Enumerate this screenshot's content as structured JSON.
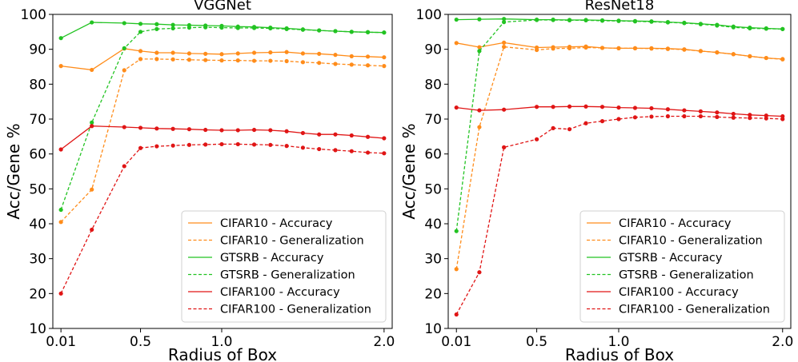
{
  "chart_data": [
    {
      "type": "line",
      "title": "VGGNet",
      "xlabel": "Radius of Box",
      "ylabel": "Acc/Gene %",
      "xlim": [
        -0.04,
        2.05
      ],
      "ylim": [
        10,
        100
      ],
      "xticks": [
        0.01,
        0.5,
        1.0,
        2.0
      ],
      "xtick_labels": [
        "0.01",
        "0.5",
        "1.0",
        "2.0"
      ],
      "yticks": [
        10,
        20,
        30,
        40,
        50,
        60,
        70,
        80,
        90,
        100
      ],
      "legend_position": "lower-right",
      "x": [
        0.01,
        0.2,
        0.4,
        0.5,
        0.6,
        0.7,
        0.8,
        0.9,
        1.0,
        1.1,
        1.2,
        1.3,
        1.4,
        1.5,
        1.6,
        1.7,
        1.8,
        1.9,
        2.0
      ],
      "series": [
        {
          "name": "CIFAR10 - Accuracy",
          "color": "#ff8c1a",
          "dashed": false,
          "values": [
            85.2,
            84.1,
            90.2,
            89.5,
            89.0,
            89.0,
            88.8,
            88.7,
            88.6,
            88.8,
            89.0,
            89.1,
            89.2,
            88.8,
            88.7,
            88.4,
            88.0,
            87.9,
            87.7
          ]
        },
        {
          "name": "CIFAR10 - Generalization",
          "color": "#ff8c1a",
          "dashed": true,
          "values": [
            40.5,
            49.8,
            84.0,
            87.2,
            87.2,
            87.1,
            87.0,
            86.9,
            86.8,
            86.8,
            86.7,
            86.7,
            86.6,
            86.3,
            86.1,
            85.8,
            85.6,
            85.4,
            85.2
          ]
        },
        {
          "name": "GTSRB - Accuracy",
          "color": "#22c322",
          "dashed": false,
          "values": [
            93.2,
            97.7,
            97.5,
            97.3,
            97.2,
            97.0,
            96.9,
            96.8,
            96.7,
            96.5,
            96.4,
            96.2,
            96.0,
            95.7,
            95.4,
            95.2,
            95.0,
            94.9,
            94.8
          ]
        },
        {
          "name": "GTSRB - Generalization",
          "color": "#22c322",
          "dashed": true,
          "values": [
            44.0,
            69.0,
            90.3,
            95.0,
            95.8,
            96.0,
            96.2,
            96.3,
            96.2,
            96.1,
            96.1,
            96.0,
            95.8,
            95.6,
            95.4,
            95.2,
            95.0,
            94.9,
            94.8
          ]
        },
        {
          "name": "CIFAR100 - Accuracy",
          "color": "#e01515",
          "dashed": false,
          "values": [
            61.3,
            68.0,
            67.7,
            67.5,
            67.3,
            67.2,
            67.1,
            66.9,
            66.8,
            66.8,
            66.9,
            66.8,
            66.5,
            66.0,
            65.6,
            65.6,
            65.3,
            64.9,
            64.5
          ]
        },
        {
          "name": "CIFAR100 - Generalization",
          "color": "#e01515",
          "dashed": true,
          "values": [
            20.0,
            38.3,
            56.5,
            61.7,
            62.2,
            62.4,
            62.6,
            62.7,
            62.8,
            62.8,
            62.7,
            62.6,
            62.3,
            61.8,
            61.4,
            61.1,
            60.8,
            60.4,
            60.2
          ]
        }
      ]
    },
    {
      "type": "line",
      "title": "ResNet18",
      "xlabel": "Radius of Box",
      "ylabel": "Acc/Gene %",
      "xlim": [
        -0.04,
        2.05
      ],
      "ylim": [
        10,
        100
      ],
      "xticks": [
        0.01,
        0.5,
        1.0,
        2.0
      ],
      "xtick_labels": [
        "0.01",
        "0.5",
        "1.0",
        "2.0"
      ],
      "yticks": [
        10,
        20,
        30,
        40,
        50,
        60,
        70,
        80,
        90,
        100
      ],
      "legend_position": "lower-right",
      "x": [
        0.01,
        0.15,
        0.3,
        0.5,
        0.6,
        0.7,
        0.8,
        0.9,
        1.0,
        1.1,
        1.2,
        1.3,
        1.4,
        1.5,
        1.6,
        1.7,
        1.8,
        1.9,
        2.0
      ],
      "series": [
        {
          "name": "CIFAR10 - Accuracy",
          "color": "#ff8c1a",
          "dashed": false,
          "values": [
            91.8,
            90.6,
            91.9,
            90.5,
            90.6,
            90.7,
            90.8,
            90.4,
            90.3,
            90.3,
            90.3,
            90.2,
            90.0,
            89.5,
            89.1,
            88.6,
            88.0,
            87.5,
            87.2
          ]
        },
        {
          "name": "CIFAR10 - Generalization",
          "color": "#ff8c1a",
          "dashed": true,
          "values": [
            27.0,
            67.7,
            90.7,
            89.8,
            90.2,
            90.3,
            90.5,
            90.4,
            90.3,
            90.3,
            90.2,
            90.1,
            89.9,
            89.5,
            89.1,
            88.6,
            88.0,
            87.5,
            87.1
          ]
        },
        {
          "name": "GTSRB - Accuracy",
          "color": "#22c322",
          "dashed": false,
          "values": [
            98.5,
            98.6,
            98.7,
            98.5,
            98.5,
            98.4,
            98.4,
            98.3,
            98.2,
            98.1,
            98.0,
            97.8,
            97.6,
            97.3,
            97.0,
            96.5,
            96.2,
            96.0,
            95.8
          ]
        },
        {
          "name": "GTSRB - Generalization",
          "color": "#22c322",
          "dashed": true,
          "values": [
            37.9,
            89.5,
            97.8,
            98.4,
            98.4,
            98.3,
            98.3,
            98.2,
            98.1,
            98.0,
            97.9,
            97.7,
            97.5,
            97.2,
            96.8,
            96.3,
            96.0,
            95.9,
            95.8
          ]
        },
        {
          "name": "CIFAR100 - Accuracy",
          "color": "#e01515",
          "dashed": false,
          "values": [
            73.3,
            72.5,
            72.7,
            73.5,
            73.5,
            73.6,
            73.6,
            73.5,
            73.3,
            73.2,
            73.1,
            72.8,
            72.5,
            72.2,
            71.9,
            71.5,
            71.2,
            71.0,
            70.8
          ]
        },
        {
          "name": "CIFAR100 - Generalization",
          "color": "#e01515",
          "dashed": true,
          "values": [
            14.0,
            26.1,
            61.9,
            64.2,
            67.4,
            67.1,
            68.8,
            69.4,
            70.0,
            70.5,
            70.7,
            70.8,
            70.8,
            70.8,
            70.6,
            70.4,
            70.3,
            70.2,
            70.0
          ]
        }
      ]
    }
  ]
}
